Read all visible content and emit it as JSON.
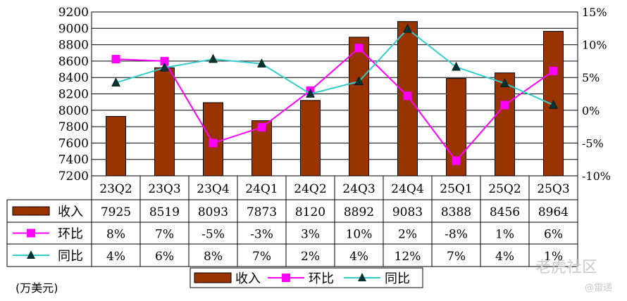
{
  "chart_data": {
    "type": "bar+line",
    "categories": [
      "23Q2",
      "23Q3",
      "23Q4",
      "24Q1",
      "24Q2",
      "24Q3",
      "24Q4",
      "25Q1",
      "25Q2",
      "25Q3"
    ],
    "series": [
      {
        "name": "收入",
        "type": "bar",
        "axis": "left",
        "color": "#993300",
        "values": [
          7925,
          8519,
          8093,
          7873,
          8120,
          8892,
          9083,
          8388,
          8456,
          8964
        ],
        "labels": [
          "7925",
          "8519",
          "8093",
          "7873",
          "8120",
          "8892",
          "9083",
          "8388",
          "8456",
          "8964"
        ]
      },
      {
        "name": "环比",
        "type": "line",
        "axis": "right",
        "color": "#ff00ff",
        "marker": "square",
        "values": [
          7.8,
          7.5,
          -5,
          -2.6,
          3.0,
          9.5,
          2.2,
          -7.7,
          0.8,
          6.0
        ],
        "labels": [
          "8%",
          "7%",
          "-5%",
          "-3%",
          "3%",
          "10%",
          "2%",
          "-8%",
          "1%",
          "6%"
        ]
      },
      {
        "name": "同比",
        "type": "line",
        "axis": "right",
        "color": "#33cccc",
        "marker": "triangle",
        "values": [
          4.2,
          6.5,
          7.8,
          7.1,
          2.5,
          4.4,
          12.4,
          6.6,
          4.1,
          0.8
        ],
        "labels": [
          "4%",
          "6%",
          "8%",
          "7%",
          "2%",
          "4%",
          "12%",
          "7%",
          "4%",
          "1%"
        ]
      }
    ],
    "y_left": {
      "min": 7200,
      "max": 9200,
      "step": 200,
      "ticks": [
        "7200",
        "7400",
        "7600",
        "7800",
        "8000",
        "8200",
        "8400",
        "8600",
        "8800",
        "9000",
        "9200"
      ]
    },
    "y_right": {
      "min": -10,
      "max": 15,
      "step": 5,
      "ticks": [
        "-10%",
        "-5%",
        "0%",
        "5%",
        "10%",
        "15%"
      ]
    },
    "grid": true,
    "legend": "bottom",
    "legend_labels": [
      "收入",
      "环比",
      "同比"
    ]
  },
  "unit_note": "(万美元)",
  "watermark": {
    "main": "老虎社区",
    "sub": "@雷递"
  }
}
